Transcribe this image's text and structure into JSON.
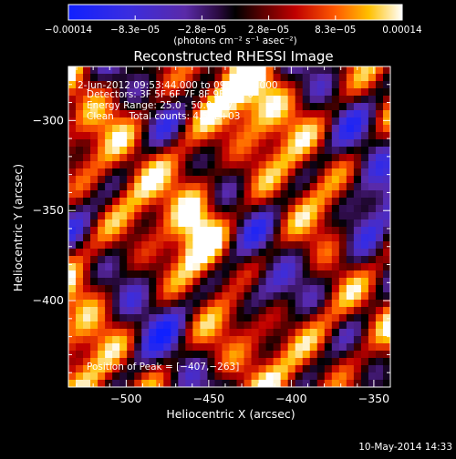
{
  "chart_data": {
    "type": "heatmap",
    "title": "Reconstructed RHESSI Image",
    "xlabel": "Heliocentric X (arcsec)",
    "ylabel": "Heliocentric Y (arcsec)",
    "xlim": [
      -535,
      -340
    ],
    "ylim": [
      -448,
      -270
    ],
    "x_ticks": [
      -500,
      -450,
      -400,
      -350
    ],
    "x_tick_labels": [
      "−500",
      "−450",
      "−400",
      "−350"
    ],
    "y_ticks": [
      -300,
      -350,
      -400
    ],
    "y_tick_labels": [
      "−300",
      "−350",
      "−400"
    ],
    "colorbar": {
      "min": -0.00014,
      "max": 0.00014,
      "tick_labels": [
        "−0.00014",
        "−8.3e−05",
        "−2.8e−05",
        "2.8e−05",
        "8.3e−05",
        "0.00014"
      ],
      "units_label": "(photons cm⁻² s⁻¹ asec⁻²)"
    },
    "annotations": {
      "time_range": "2-Jun-2012 09:53:44.000 to 09:54:44.000",
      "detectors": "Detectors: 3F 5F 6F 7F 8F 9F, Att 0",
      "energy_range": "Energy Range: 25.0 - 50.0 keV",
      "clean": "Clean     Total counts: 4.53E+03",
      "peak": "Position of Peak = [−407,−263]"
    },
    "footer_date": "10-May-2014 14:33"
  }
}
